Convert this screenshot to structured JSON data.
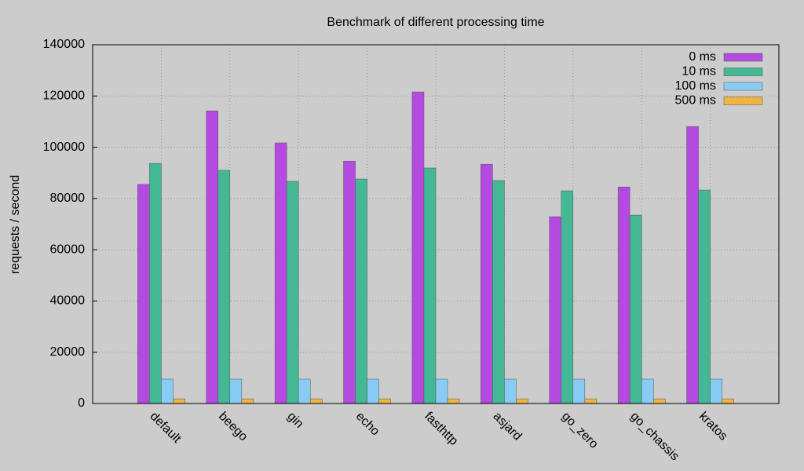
{
  "chart_data": {
    "type": "bar",
    "title": "Benchmark of different processing time",
    "y_label": "requests / second",
    "categories": [
      "default",
      "beego",
      "gin",
      "echo",
      "fasthttp",
      "asjard",
      "go_zero",
      "go_chassis",
      "kratos"
    ],
    "series": [
      {
        "name": "0 ms",
        "color": "#b44ae0",
        "values": [
          85500,
          114200,
          101700,
          94600,
          121600,
          93400,
          72900,
          84500,
          108100
        ]
      },
      {
        "name": "10 ms",
        "color": "#44b894",
        "values": [
          93700,
          91000,
          86700,
          87600,
          91900,
          87000,
          83000,
          73500,
          83300
        ]
      },
      {
        "name": "100 ms",
        "color": "#88ccf4",
        "values": [
          9500,
          9500,
          9500,
          9500,
          9500,
          9500,
          9500,
          9500,
          9500
        ]
      },
      {
        "name": "500 ms",
        "color": "#f0b444",
        "values": [
          1800,
          1800,
          1800,
          1800,
          1800,
          1800,
          1800,
          1800,
          1800
        ]
      }
    ],
    "xlim": [
      -1,
      9
    ],
    "ylim": [
      0,
      140000
    ],
    "yticks": [
      0,
      20000,
      40000,
      60000,
      80000,
      100000,
      120000,
      140000
    ],
    "grid": true,
    "legend": "top-right"
  }
}
